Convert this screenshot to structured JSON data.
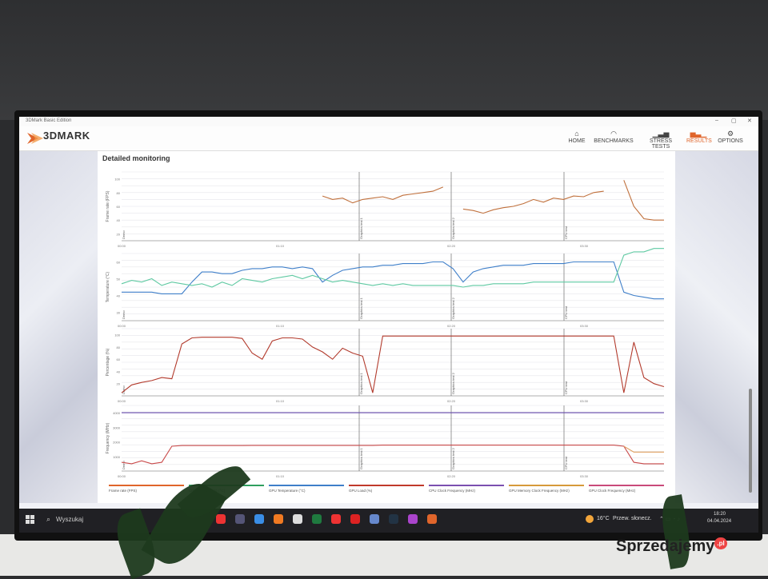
{
  "window": {
    "title": "3DMark Basic Edition"
  },
  "app": {
    "logo": "3DMARK",
    "nav": [
      {
        "label": "HOME",
        "icon": "home-icon"
      },
      {
        "label": "BENCHMARKS",
        "icon": "gauge-icon"
      },
      {
        "label": "STRESS TESTS",
        "icon": "bar-chart-icon"
      },
      {
        "label": "RESULTS",
        "icon": "results-icon",
        "active": true
      },
      {
        "label": "OPTIONS",
        "icon": "gear-icon"
      }
    ]
  },
  "panel": {
    "title": "Detailed monitoring"
  },
  "chart_data": {
    "type": "line",
    "phase_labels": [
      "Demo",
      "Graphics test 1",
      "Graphics test 2",
      "CPU test"
    ],
    "panels": [
      {
        "ylabel": "Frame rate (FPS)",
        "ticks": [
          "100",
          "80",
          "60",
          "40",
          "20"
        ],
        "xticks": [
          "00:00",
          "01:10",
          "02:20",
          "03:30"
        ],
        "series": [
          {
            "color": "#c0703c",
            "values": [
              null,
              null,
              null,
              null,
              null,
              null,
              null,
              null,
              null,
              null,
              null,
              null,
              null,
              null,
              null,
              null,
              null,
              null,
              null,
              null,
              75,
              70,
              72,
              65,
              70,
              72,
              74,
              70,
              76,
              78,
              80,
              82,
              88,
              null,
              56,
              54,
              50,
              55,
              58,
              60,
              64,
              70,
              66,
              72,
              70,
              75,
              74,
              80,
              82,
              null,
              98,
              60,
              42,
              40,
              40
            ]
          }
        ]
      },
      {
        "ylabel": "Temperature (°C)",
        "ticks": [
          "60",
          "50",
          "40",
          "30"
        ],
        "xticks": [
          "00:00",
          "01:10",
          "02:20",
          "03:30"
        ],
        "series": [
          {
            "color": "#3f7fc9",
            "values": [
              42,
              42,
              42,
              42,
              41,
              41,
              41,
              48,
              54,
              54,
              53,
              53,
              55,
              56,
              56,
              57,
              57,
              56,
              57,
              56,
              48,
              52,
              55,
              56,
              57,
              57,
              58,
              58,
              59,
              59,
              59,
              60,
              60,
              56,
              48,
              54,
              56,
              57,
              58,
              58,
              58,
              59,
              59,
              59,
              59,
              60,
              60,
              60,
              60,
              60,
              42,
              40,
              39,
              38,
              38
            ]
          },
          {
            "color": "#5fc9a2",
            "values": [
              47,
              49,
              48,
              50,
              46,
              48,
              47,
              46,
              47,
              45,
              48,
              46,
              50,
              49,
              48,
              50,
              51,
              52,
              50,
              52,
              50,
              48,
              49,
              48,
              47,
              46,
              47,
              46,
              47,
              46,
              46,
              46,
              46,
              46,
              45,
              46,
              46,
              47,
              47,
              47,
              47,
              48,
              48,
              48,
              48,
              48,
              48,
              48,
              48,
              48,
              64,
              66,
              66,
              68,
              68
            ]
          }
        ]
      },
      {
        "ylabel": "Percentage (%)",
        "ticks": [
          "100",
          "80",
          "60",
          "40",
          "20"
        ],
        "xticks": [
          "00:00",
          "01:10",
          "02:20",
          "03:30"
        ],
        "series": [
          {
            "color": "#b23a2c",
            "values": [
              5,
              18,
              22,
              25,
              30,
              28,
              85,
              95,
              96,
              96,
              96,
              96,
              94,
              70,
              60,
              90,
              95,
              95,
              93,
              80,
              72,
              60,
              78,
              70,
              65,
              5,
              98,
              98,
              98,
              98,
              98,
              98,
              98,
              98,
              98,
              98,
              98,
              98,
              98,
              98,
              98,
              98,
              98,
              98,
              98,
              98,
              98,
              98,
              98,
              98,
              5,
              88,
              30,
              20,
              15
            ]
          }
        ]
      },
      {
        "ylabel": "Frequency (MHz)",
        "ticks": [
          "4000",
          "3000",
          "2000",
          "1000"
        ],
        "xticks": [
          "00:00",
          "01:10",
          "02:20",
          "03:30"
        ],
        "series": [
          {
            "color": "#6a4fb0",
            "values": [
              4000,
              4000,
              4000,
              4000,
              4000,
              4000,
              4000,
              4000,
              4000,
              4000,
              4000,
              4000,
              4000,
              4000,
              4000,
              4000,
              4000,
              4000,
              4000,
              4000,
              4000,
              4000,
              4000,
              4000,
              4000,
              4000,
              4000,
              4000,
              4000,
              4000,
              4000,
              4000,
              4000,
              4000,
              4000,
              4000,
              4000,
              4000,
              4000,
              4000,
              4000,
              4000,
              4000,
              4000,
              4000,
              4000,
              4000,
              4000,
              4000,
              4000,
              4000,
              4000,
              4000,
              4000,
              4000
            ]
          },
          {
            "color": "#c94a4a",
            "values": [
              600,
              500,
              700,
              500,
              600,
              1700,
              1750,
              1750,
              1750,
              1750,
              1750,
              1750,
              1750,
              1760,
              1760,
              1760,
              1760,
              1760,
              1760,
              1760,
              1760,
              1760,
              1760,
              1760,
              1760,
              1760,
              1780,
              1780,
              1780,
              1780,
              1780,
              1780,
              1780,
              1780,
              1780,
              1780,
              1780,
              1780,
              1780,
              1780,
              1780,
              1780,
              1780,
              1780,
              1780,
              1780,
              1780,
              1780,
              1780,
              1780,
              1700,
              600,
              500,
              500,
              500
            ]
          },
          {
            "color": "#e0a060",
            "values": [
              null,
              null,
              null,
              null,
              null,
              null,
              null,
              null,
              null,
              null,
              null,
              null,
              null,
              null,
              null,
              null,
              null,
              null,
              null,
              null,
              null,
              null,
              null,
              null,
              null,
              null,
              null,
              null,
              null,
              null,
              null,
              null,
              null,
              null,
              null,
              null,
              null,
              null,
              null,
              null,
              null,
              null,
              null,
              null,
              null,
              null,
              null,
              null,
              null,
              null,
              1700,
              1300,
              1300,
              1300,
              1300
            ]
          }
        ]
      }
    ],
    "legend": [
      {
        "name": "Frame rate (FPS)",
        "color": "#e0652b"
      },
      {
        "name": "CPU Temperature (°C)",
        "color": "#2f9f5f"
      },
      {
        "name": "GPU Temperature (°C)",
        "color": "#3f7fc9"
      },
      {
        "name": "GPU Load (%)",
        "color": "#c0392b"
      },
      {
        "name": "CPU Clock Frequency (MHz)",
        "color": "#7b4fb0"
      },
      {
        "name": "GPU Memory Clock Frequency (MHz)",
        "color": "#d69a3a"
      },
      {
        "name": "GPU Clock Frequency (MHz)",
        "color": "#c94a7a"
      }
    ]
  },
  "taskbar": {
    "search_placeholder": "Wyszukaj",
    "weather_temp": "16°C",
    "weather_desc": "Przew. słonecz.",
    "time": "18:20",
    "date": "04.04.2024",
    "apps": [
      "opera-icon",
      "task-view-icon",
      "edge-icon",
      "firefox-icon",
      "store-icon",
      "excel-icon",
      "youtube-icon",
      "opera-gx-icon",
      "settings-app-icon",
      "steam-icon",
      "app-icon",
      "3dmark-app-icon"
    ]
  },
  "watermark": {
    "text": "Sprzedajemy",
    "suffix": ".pl"
  }
}
